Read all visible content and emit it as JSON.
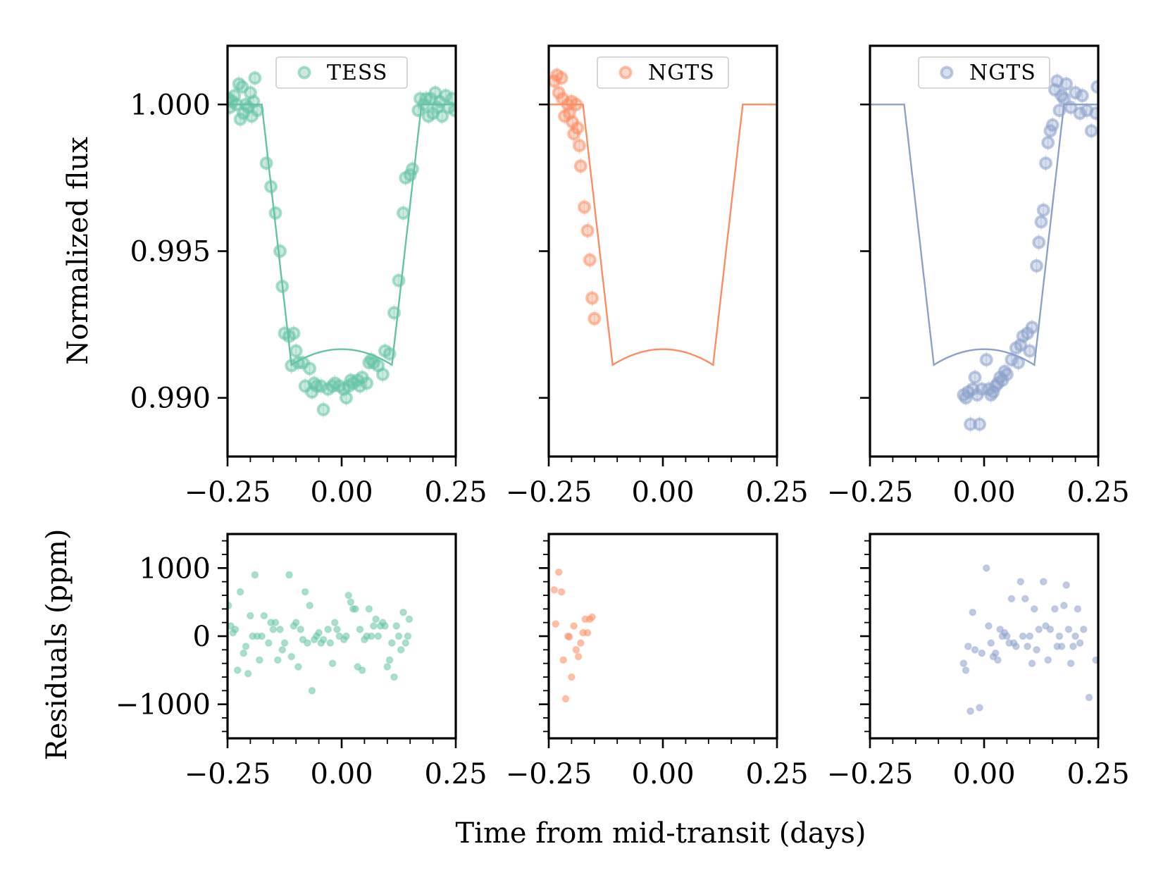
{
  "figure": {
    "ylabel_top": "Normalized flux",
    "ylabel_bottom": "Residuals (ppm)",
    "xlabel": "Time from mid-transit (days)"
  },
  "colors": {
    "tess": "#66c2a5",
    "ngts1": "#fc8d62",
    "ngts2": "#8da0cb",
    "axes": "#000000",
    "background": "#ffffff"
  },
  "chart_data": [
    {
      "type": "scatter",
      "panel": "top-left",
      "legend": "TESS",
      "legend_position": "top-center",
      "color_key": "tess",
      "xlim": [
        -0.25,
        0.25
      ],
      "ylim": [
        0.988,
        1.002
      ],
      "x_ticks": [
        -0.25,
        0.0,
        0.25
      ],
      "x_tick_labels": [
        "−0.25",
        "0.00",
        "0.25"
      ],
      "y_ticks": [
        0.99,
        0.995,
        1.0
      ],
      "y_tick_labels": [
        "0.990",
        "0.995",
        "1.000"
      ],
      "model": {
        "depth": 0.0097,
        "half_width": 0.175,
        "ingress": 0.065
      },
      "points": [
        [
          -0.248,
          1.0002
        ],
        [
          -0.245,
          0.9999
        ],
        [
          -0.24,
          1.0001
        ],
        [
          -0.235,
          1.0003
        ],
        [
          -0.23,
          1.0
        ],
        [
          -0.225,
          1.0007
        ],
        [
          -0.222,
          0.9995
        ],
        [
          -0.218,
          1.0006
        ],
        [
          -0.215,
          0.9997
        ],
        [
          -0.21,
          1.0
        ],
        [
          -0.205,
          0.9999
        ],
        [
          -0.2,
          1.0004
        ],
        [
          -0.197,
          0.9996
        ],
        [
          -0.193,
          1.0001
        ],
        [
          -0.19,
          1.0009
        ],
        [
          -0.185,
          0.9998
        ],
        [
          -0.165,
          0.998
        ],
        [
          -0.155,
          0.9972
        ],
        [
          -0.145,
          0.9963
        ],
        [
          -0.135,
          0.995
        ],
        [
          -0.13,
          0.9938
        ],
        [
          -0.125,
          0.9922
        ],
        [
          -0.115,
          0.9921
        ],
        [
          -0.105,
          0.9922
        ],
        [
          -0.11,
          0.9911
        ],
        [
          -0.1,
          0.9916
        ],
        [
          -0.095,
          0.9912
        ],
        [
          -0.085,
          0.9912
        ],
        [
          -0.08,
          0.9904
        ],
        [
          -0.07,
          0.991
        ],
        [
          -0.065,
          0.9902
        ],
        [
          -0.06,
          0.9905
        ],
        [
          -0.055,
          0.9904
        ],
        [
          -0.045,
          0.9904
        ],
        [
          -0.04,
          0.9896
        ],
        [
          -0.03,
          0.9903
        ],
        [
          -0.02,
          0.9904
        ],
        [
          -0.015,
          0.9905
        ],
        [
          -0.005,
          0.9904
        ],
        [
          0.005,
          0.9903
        ],
        [
          0.01,
          0.99
        ],
        [
          0.015,
          0.9904
        ],
        [
          0.02,
          0.9906
        ],
        [
          0.025,
          0.9905
        ],
        [
          0.035,
          0.9906
        ],
        [
          0.04,
          0.9904
        ],
        [
          0.045,
          0.9907
        ],
        [
          0.055,
          0.9905
        ],
        [
          0.06,
          0.9912
        ],
        [
          0.065,
          0.9913
        ],
        [
          0.07,
          0.9912
        ],
        [
          0.08,
          0.9911
        ],
        [
          0.09,
          0.9908
        ],
        [
          0.095,
          0.9916
        ],
        [
          0.105,
          0.9915
        ],
        [
          0.115,
          0.9929
        ],
        [
          0.125,
          0.994
        ],
        [
          0.135,
          0.9963
        ],
        [
          0.14,
          0.9975
        ],
        [
          0.15,
          0.9976
        ],
        [
          0.155,
          0.9978
        ],
        [
          0.168,
          0.9998
        ],
        [
          0.172,
          1.0002
        ],
        [
          0.18,
          1.0
        ],
        [
          0.185,
          1.0002
        ],
        [
          0.19,
          0.9996
        ],
        [
          0.195,
          1.0002
        ],
        [
          0.2,
          0.9997
        ],
        [
          0.205,
          1.0004
        ],
        [
          0.21,
          0.9999
        ],
        [
          0.215,
          1.0001
        ],
        [
          0.22,
          0.9996
        ],
        [
          0.228,
          1.0003
        ],
        [
          0.235,
          0.9999
        ],
        [
          0.242,
          1.0002
        ],
        [
          0.248,
          0.9998
        ]
      ]
    },
    {
      "type": "scatter",
      "panel": "top-middle",
      "legend": "NGTS",
      "legend_position": "top-center",
      "color_key": "ngts1",
      "xlim": [
        -0.25,
        0.25
      ],
      "ylim": [
        0.988,
        1.002
      ],
      "x_ticks": [
        -0.25,
        0.0,
        0.25
      ],
      "x_tick_labels": [
        "−0.25",
        "0.00",
        "0.25"
      ],
      "y_ticks": [
        0.99,
        0.995,
        1.0
      ],
      "model": {
        "depth": 0.0097,
        "half_width": 0.175,
        "ingress": 0.065
      },
      "points": [
        [
          -0.238,
          1.0008
        ],
        [
          -0.232,
          1.001
        ],
        [
          -0.228,
          1.0004
        ],
        [
          -0.222,
          1.0009
        ],
        [
          -0.22,
          1.0002
        ],
        [
          -0.215,
          0.9996
        ],
        [
          -0.208,
          1.0
        ],
        [
          -0.205,
          0.9997
        ],
        [
          -0.2,
          1.0001
        ],
        [
          -0.198,
          0.9994
        ],
        [
          -0.195,
          0.999
        ],
        [
          -0.19,
          1.0
        ],
        [
          -0.187,
          0.9992
        ],
        [
          -0.183,
          0.9986
        ],
        [
          -0.18,
          0.9979
        ],
        [
          -0.172,
          0.9965
        ],
        [
          -0.165,
          0.9957
        ],
        [
          -0.16,
          0.9947
        ],
        [
          -0.155,
          0.9934
        ],
        [
          -0.15,
          0.9927
        ]
      ]
    },
    {
      "type": "scatter",
      "panel": "top-right",
      "legend": "NGTS",
      "legend_position": "top-center",
      "color_key": "ngts2",
      "xlim": [
        -0.25,
        0.25
      ],
      "ylim": [
        0.988,
        1.002
      ],
      "x_ticks": [
        -0.25,
        0.0,
        0.25
      ],
      "x_tick_labels": [
        "−0.25",
        "0.00",
        "0.25"
      ],
      "y_ticks": [
        0.99,
        0.995,
        1.0
      ],
      "model": {
        "depth": 0.0097,
        "half_width": 0.175,
        "ingress": 0.065
      },
      "points": [
        [
          -0.045,
          0.9901
        ],
        [
          -0.04,
          0.99
        ],
        [
          -0.035,
          0.9902
        ],
        [
          -0.03,
          0.9891
        ],
        [
          -0.025,
          0.9903
        ],
        [
          -0.02,
          0.9907
        ],
        [
          -0.015,
          0.9901
        ],
        [
          -0.01,
          0.9891
        ],
        [
          -0.005,
          0.9903
        ],
        [
          0.005,
          0.9913
        ],
        [
          0.01,
          0.9903
        ],
        [
          0.015,
          0.9901
        ],
        [
          0.02,
          0.9902
        ],
        [
          0.025,
          0.9904
        ],
        [
          0.03,
          0.9905
        ],
        [
          0.035,
          0.9907
        ],
        [
          0.04,
          0.9906
        ],
        [
          0.045,
          0.9909
        ],
        [
          0.05,
          0.9908
        ],
        [
          0.06,
          0.9913
        ],
        [
          0.07,
          0.9917
        ],
        [
          0.075,
          0.9912
        ],
        [
          0.08,
          0.9918
        ],
        [
          0.085,
          0.9921
        ],
        [
          0.095,
          0.9922
        ],
        [
          0.1,
          0.9916
        ],
        [
          0.105,
          0.9924
        ],
        [
          0.115,
          0.9945
        ],
        [
          0.12,
          0.9953
        ],
        [
          0.125,
          0.996
        ],
        [
          0.13,
          0.9964
        ],
        [
          0.135,
          0.998
        ],
        [
          0.14,
          0.9987
        ],
        [
          0.145,
          0.9991
        ],
        [
          0.15,
          0.9993
        ],
        [
          0.155,
          1.0005
        ],
        [
          0.16,
          1.0008
        ],
        [
          0.165,
          0.9998
        ],
        [
          0.17,
          1.0003
        ],
        [
          0.175,
          1.0002
        ],
        [
          0.18,
          1.0007
        ],
        [
          0.19,
          0.9999
        ],
        [
          0.2,
          1.0004
        ],
        [
          0.21,
          0.9997
        ],
        [
          0.215,
          1.0003
        ],
        [
          0.225,
          0.9998
        ],
        [
          0.235,
          0.9991
        ],
        [
          0.245,
          0.9997
        ],
        [
          0.248,
          1.0006
        ]
      ]
    },
    {
      "type": "scatter",
      "panel": "bottom-left",
      "color_key": "tess",
      "xlim": [
        -0.25,
        0.25
      ],
      "ylim": [
        -1500,
        1500
      ],
      "x_ticks": [
        -0.25,
        0.0,
        0.25
      ],
      "x_tick_labels": [
        "−0.25",
        "0.00",
        "0.25"
      ],
      "y_ticks": [
        -1000,
        0,
        1000
      ],
      "y_tick_labels": [
        "−1000",
        "0",
        "1000"
      ],
      "points": [
        [
          -0.248,
          450
        ],
        [
          -0.243,
          150
        ],
        [
          -0.238,
          50
        ],
        [
          -0.233,
          100
        ],
        [
          -0.228,
          -500
        ],
        [
          -0.222,
          650
        ],
        [
          -0.215,
          -250
        ],
        [
          -0.21,
          -150
        ],
        [
          -0.205,
          -550
        ],
        [
          -0.2,
          300
        ],
        [
          -0.195,
          0
        ],
        [
          -0.19,
          900
        ],
        [
          -0.185,
          0
        ],
        [
          -0.18,
          -350
        ],
        [
          -0.175,
          0
        ],
        [
          -0.17,
          300
        ],
        [
          -0.16,
          -100
        ],
        [
          -0.155,
          200
        ],
        [
          -0.15,
          100
        ],
        [
          -0.145,
          200
        ],
        [
          -0.14,
          -350
        ],
        [
          -0.135,
          100
        ],
        [
          -0.13,
          -200
        ],
        [
          -0.125,
          -100
        ],
        [
          -0.115,
          900
        ],
        [
          -0.11,
          -300
        ],
        [
          -0.105,
          150
        ],
        [
          -0.1,
          200
        ],
        [
          -0.095,
          -450
        ],
        [
          -0.09,
          100
        ],
        [
          -0.085,
          -50
        ],
        [
          -0.08,
          650
        ],
        [
          -0.075,
          -100
        ],
        [
          -0.07,
          450
        ],
        [
          -0.065,
          -800
        ],
        [
          -0.06,
          -50
        ],
        [
          -0.055,
          0
        ],
        [
          -0.05,
          50
        ],
        [
          -0.045,
          -100
        ],
        [
          -0.04,
          -50
        ],
        [
          -0.03,
          100
        ],
        [
          -0.025,
          -100
        ],
        [
          -0.02,
          -400
        ],
        [
          -0.015,
          200
        ],
        [
          -0.01,
          100
        ],
        [
          -0.005,
          0
        ],
        [
          0.005,
          -50
        ],
        [
          0.01,
          0
        ],
        [
          0.015,
          600
        ],
        [
          0.02,
          500
        ],
        [
          0.025,
          400
        ],
        [
          0.03,
          400
        ],
        [
          0.035,
          -450
        ],
        [
          0.04,
          100
        ],
        [
          0.045,
          -500
        ],
        [
          0.05,
          -50
        ],
        [
          0.055,
          0
        ],
        [
          0.06,
          400
        ],
        [
          0.065,
          0
        ],
        [
          0.07,
          150
        ],
        [
          0.075,
          250
        ],
        [
          0.08,
          0
        ],
        [
          0.085,
          150
        ],
        [
          0.09,
          200
        ],
        [
          0.095,
          150
        ],
        [
          0.1,
          -450
        ],
        [
          0.105,
          -350
        ],
        [
          0.11,
          -100
        ],
        [
          0.115,
          -600
        ],
        [
          0.12,
          150
        ],
        [
          0.125,
          0
        ],
        [
          0.13,
          -200
        ],
        [
          0.135,
          350
        ],
        [
          0.14,
          -100
        ],
        [
          0.145,
          0
        ],
        [
          0.148,
          250
        ]
      ]
    },
    {
      "type": "scatter",
      "panel": "bottom-middle",
      "color_key": "ngts1",
      "xlim": [
        -0.25,
        0.25
      ],
      "ylim": [
        -1500,
        1500
      ],
      "x_ticks": [
        -0.25,
        0.0,
        0.25
      ],
      "x_tick_labels": [
        "−0.25",
        "0.00",
        "0.25"
      ],
      "y_ticks": [
        -1000,
        0,
        1000
      ],
      "points": [
        [
          -0.238,
          680
        ],
        [
          -0.235,
          180
        ],
        [
          -0.228,
          940
        ],
        [
          -0.222,
          650
        ],
        [
          -0.218,
          -350
        ],
        [
          -0.213,
          -920
        ],
        [
          -0.208,
          0
        ],
        [
          -0.205,
          -10
        ],
        [
          -0.2,
          -600
        ],
        [
          -0.195,
          150
        ],
        [
          -0.19,
          -200
        ],
        [
          -0.185,
          -300
        ],
        [
          -0.18,
          -100
        ],
        [
          -0.175,
          50
        ],
        [
          -0.17,
          250
        ],
        [
          -0.165,
          50
        ],
        [
          -0.16,
          250
        ],
        [
          -0.155,
          280
        ]
      ]
    },
    {
      "type": "scatter",
      "panel": "bottom-right",
      "color_key": "ngts2",
      "xlim": [
        -0.25,
        0.25
      ],
      "ylim": [
        -1500,
        1500
      ],
      "x_ticks": [
        -0.25,
        0.0,
        0.25
      ],
      "x_tick_labels": [
        "−0.25",
        "0.00",
        "0.25"
      ],
      "y_ticks": [
        -1000,
        0,
        1000
      ],
      "points": [
        [
          -0.045,
          -400
        ],
        [
          -0.04,
          -500
        ],
        [
          -0.035,
          -150
        ],
        [
          -0.03,
          -1100
        ],
        [
          -0.025,
          350
        ],
        [
          -0.02,
          -200
        ],
        [
          -0.01,
          -1050
        ],
        [
          -0.005,
          -250
        ],
        [
          0.005,
          1000
        ],
        [
          0.01,
          150
        ],
        [
          0.015,
          -100
        ],
        [
          0.02,
          -300
        ],
        [
          0.025,
          -250
        ],
        [
          0.03,
          -350
        ],
        [
          0.035,
          100
        ],
        [
          0.04,
          0
        ],
        [
          0.045,
          50
        ],
        [
          0.05,
          0
        ],
        [
          0.055,
          -100
        ],
        [
          0.06,
          550
        ],
        [
          0.065,
          -100
        ],
        [
          0.07,
          -150
        ],
        [
          0.08,
          800
        ],
        [
          0.085,
          0
        ],
        [
          0.09,
          550
        ],
        [
          0.095,
          -150
        ],
        [
          0.1,
          0
        ],
        [
          0.105,
          -400
        ],
        [
          0.11,
          400
        ],
        [
          0.115,
          -200
        ],
        [
          0.12,
          100
        ],
        [
          0.13,
          800
        ],
        [
          0.135,
          150
        ],
        [
          0.14,
          -350
        ],
        [
          0.145,
          100
        ],
        [
          0.155,
          400
        ],
        [
          0.16,
          -150
        ],
        [
          0.165,
          0
        ],
        [
          0.17,
          -150
        ],
        [
          0.175,
          450
        ],
        [
          0.18,
          750
        ],
        [
          0.185,
          100
        ],
        [
          0.19,
          -400
        ],
        [
          0.195,
          -150
        ],
        [
          0.2,
          0
        ],
        [
          0.205,
          400
        ],
        [
          0.21,
          -100
        ],
        [
          0.218,
          100
        ],
        [
          0.23,
          -900
        ],
        [
          0.245,
          -350
        ]
      ]
    }
  ]
}
